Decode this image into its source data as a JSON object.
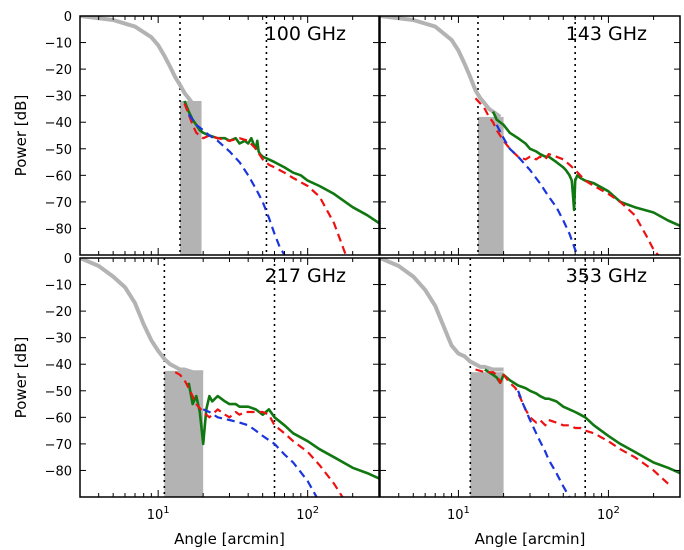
{
  "chart_data": {
    "type": "line",
    "xlabel": "Angle [arcmin]",
    "ylabel": "Power [dB]",
    "xscale": "log",
    "xlim": [
      3,
      300
    ],
    "ylim": [
      -90,
      0
    ],
    "x_tick_labels": [
      "10^1",
      "10^2"
    ],
    "y_tick_labels_top": [
      "0",
      "−10",
      "−20",
      "−30",
      "−40",
      "−50",
      "−60",
      "−70",
      "−80"
    ],
    "y_tick_labels_bottom": [
      "0",
      "−10",
      "−20",
      "−30",
      "−40",
      "−50",
      "−60",
      "−70",
      "−80"
    ],
    "grid": false,
    "colors": {
      "gray": "#b3b3b3",
      "green": "#117711",
      "red": "#ee1111",
      "blue": "#1a35dd"
    },
    "panels": [
      {
        "label": "100 GHz",
        "vlines": [
          14,
          53
        ],
        "shade": {
          "x0": 14,
          "x1": 19.5,
          "y_top": -32
        },
        "series": [
          {
            "style": "gray-solid",
            "x": [
              3,
              5,
              7,
              9,
              10,
              11,
              12,
              13,
              14,
              15,
              16,
              17,
              18
            ],
            "y": [
              0,
              -1.5,
              -4,
              -8,
              -11,
              -15,
              -19,
              -23,
              -26,
              -29,
              -31,
              -33,
              -35
            ]
          },
          {
            "style": "green-solid",
            "x": [
              15,
              16,
              17,
              18,
              19,
              20,
              22,
              25,
              28,
              30,
              33,
              35,
              38,
              40,
              42,
              44,
              45,
              46,
              47,
              48,
              50,
              55,
              60,
              70,
              80,
              90,
              100,
              120,
              150,
              200,
              250,
              300
            ],
            "y": [
              -32,
              -36,
              -39,
              -41,
              -43,
              -44,
              -45,
              -46,
              -46,
              -47,
              -46,
              -48,
              -47,
              -48,
              -46,
              -49,
              -50,
              -47,
              -51,
              -52,
              -53,
              -54,
              -55,
              -57,
              -59,
              -60,
              -62,
              -64,
              -67,
              -72,
              -75,
              -78
            ]
          },
          {
            "style": "red-dashed",
            "x": [
              15,
              16,
              17,
              18,
              20,
              22,
              25,
              30,
              35,
              40,
              45,
              50,
              55,
              60,
              70,
              80,
              100,
              120,
              150,
              180
            ],
            "y": [
              -33,
              -37,
              -41,
              -44,
              -46,
              -45,
              -46,
              -47,
              -46,
              -47,
              -50,
              -54,
              -56,
              -57,
              -59,
              -61,
              -64,
              -68,
              -78,
              -90
            ]
          },
          {
            "style": "blue-dashed",
            "x": [
              16,
              18,
              20,
              22,
              25,
              30,
              35,
              40,
              45,
              50,
              55,
              60,
              65,
              70
            ],
            "y": [
              -37,
              -41,
              -43,
              -45,
              -47,
              -51,
              -55,
              -60,
              -65,
              -70,
              -76,
              -82,
              -87,
              -90
            ]
          }
        ]
      },
      {
        "label": "143 GHz",
        "vlines": [
          13.5,
          60
        ],
        "shade": {
          "x0": 13.5,
          "x1": 20,
          "y_top": -38
        },
        "series": [
          {
            "style": "gray-solid",
            "x": [
              3,
              5,
              7,
              9,
              10,
              11,
              12,
              13,
              14,
              15,
              16,
              17,
              18,
              19
            ],
            "y": [
              0,
              -1.5,
              -4,
              -9,
              -13,
              -18,
              -23,
              -28,
              -31,
              -33,
              -35,
              -36,
              -37,
              -38
            ]
          },
          {
            "style": "green-solid",
            "x": [
              17,
              18,
              20,
              22,
              25,
              28,
              30,
              33,
              35,
              38,
              40,
              45,
              50,
              52,
              55,
              57,
              58,
              59,
              60,
              62,
              65,
              70,
              80,
              100,
              120,
              150,
              200,
              250,
              300
            ],
            "y": [
              -36,
              -39,
              -41,
              -44,
              -46,
              -48,
              -50,
              -51,
              -52,
              -53,
              -53,
              -55,
              -57,
              -58,
              -60,
              -62,
              -67,
              -73,
              -62,
              -60,
              -61,
              -62,
              -63,
              -66,
              -70,
              -72,
              -74,
              -77,
              -79
            ]
          },
          {
            "style": "red-dashed",
            "x": [
              13,
              14,
              15,
              16,
              17,
              18,
              20,
              22,
              25,
              28,
              30,
              33,
              35,
              38,
              40,
              45,
              50,
              55,
              60,
              70,
              80,
              100,
              120,
              150,
              180,
              200,
              230
            ],
            "y": [
              -31,
              -33,
              -35,
              -38,
              -40,
              -43,
              -47,
              -50,
              -53,
              -54,
              -53,
              -54,
              -53,
              -54,
              -52,
              -53,
              -54,
              -56,
              -58,
              -62,
              -64,
              -67,
              -70,
              -75,
              -83,
              -88,
              -92
            ]
          },
          {
            "style": "blue-dashed",
            "x": [
              18,
              20,
              22,
              25,
              30,
              35,
              40,
              45,
              50,
              55,
              60,
              65
            ],
            "y": [
              -41,
              -46,
              -50,
              -53,
              -58,
              -63,
              -68,
              -72,
              -77,
              -82,
              -88,
              -92
            ]
          }
        ]
      },
      {
        "label": "217 GHz",
        "vlines": [
          11,
          60
        ],
        "shade": {
          "x0": 11,
          "x1": 20,
          "y_top": -42.5
        },
        "series": [
          {
            "style": "gray-solid",
            "x": [
              3,
              4,
              5,
              6,
              7,
              8,
              9,
              10,
              11,
              12,
              13,
              14,
              15,
              17,
              20
            ],
            "y": [
              0,
              -3,
              -7,
              -11,
              -17,
              -25,
              -31,
              -35,
              -38,
              -40,
              -41,
              -42,
              -42,
              -43,
              -43
            ]
          },
          {
            "style": "green-solid",
            "x": [
              16,
              17,
              18,
              19,
              20,
              21,
              22,
              23,
              25,
              28,
              30,
              33,
              35,
              38,
              40,
              45,
              50,
              55,
              60,
              70,
              80,
              100,
              120,
              150,
              200,
              250,
              300
            ],
            "y": [
              -47,
              -55,
              -52,
              -58,
              -70,
              -57,
              -52,
              -54,
              -52,
              -54,
              -55,
              -55,
              -56,
              -56,
              -56,
              -57,
              -59,
              -57,
              -60,
              -63,
              -66,
              -69,
              -72,
              -75,
              -79,
              -81,
              -83
            ]
          },
          {
            "style": "red-dashed",
            "x": [
              13,
              14,
              15,
              16,
              17,
              18,
              20,
              22,
              25,
              28,
              30,
              33,
              35,
              38,
              40,
              45,
              50,
              55,
              60,
              70,
              80,
              100,
              120,
              150,
              180
            ],
            "y": [
              -43,
              -44,
              -46,
              -49,
              -52,
              -55,
              -58,
              -60,
              -57,
              -59,
              -60,
              -58,
              -59,
              -58,
              -58,
              -58,
              -58,
              -59,
              -63,
              -66,
              -69,
              -73,
              -78,
              -85,
              -92
            ]
          },
          {
            "style": "blue-dashed",
            "x": [
              20,
              22,
              25,
              30,
              35,
              40,
              45,
              50,
              60,
              70,
              80,
              100,
              120
            ],
            "y": [
              -57,
              -58,
              -60,
              -61,
              -62,
              -63,
              -65,
              -67,
              -70,
              -74,
              -77,
              -84,
              -92
            ]
          }
        ]
      },
      {
        "label": "353 GHz",
        "vlines": [
          12,
          70
        ],
        "shade": {
          "x0": 12,
          "x1": 20,
          "y_top": -43
        },
        "series": [
          {
            "style": "gray-solid",
            "x": [
              3,
              4,
              5,
              6,
              7,
              8,
              9,
              10,
              11,
              12,
              13,
              14,
              15,
              17,
              20
            ],
            "y": [
              0,
              -3,
              -7,
              -12,
              -18,
              -26,
              -33,
              -36,
              -37,
              -39,
              -40,
              -41,
              -41,
              -42,
              -42
            ]
          },
          {
            "style": "green-solid",
            "x": [
              15,
              16,
              17,
              18,
              19,
              20,
              22,
              25,
              28,
              30,
              33,
              35,
              38,
              40,
              45,
              50,
              55,
              60,
              65,
              70,
              80,
              100,
              120,
              150,
              200,
              250,
              300
            ],
            "y": [
              -42,
              -43,
              -44,
              -45,
              -47,
              -44,
              -46,
              -48,
              -49,
              -50,
              -51,
              -52,
              -53,
              -53,
              -54,
              -56,
              -57,
              -58,
              -59,
              -60,
              -63,
              -67,
              -70,
              -73,
              -77,
              -79,
              -81
            ]
          },
          {
            "style": "red-dashed",
            "x": [
              13,
              15,
              17,
              18,
              19,
              20,
              22,
              24,
              26,
              28,
              30,
              33,
              35,
              38,
              40,
              45,
              50,
              55,
              60,
              65,
              70,
              80,
              100,
              120,
              150,
              200,
              250
            ],
            "y": [
              -42,
              -43,
              -43,
              -44,
              -47,
              -44,
              -47,
              -49,
              -53,
              -57,
              -60,
              -62,
              -61,
              -63,
              -61,
              -62,
              -63,
              -63,
              -64,
              -64,
              -65,
              -66,
              -69,
              -72,
              -75,
              -80,
              -85
            ]
          },
          {
            "style": "blue-dashed",
            "x": [
              25,
              27,
              30,
              33,
              35,
              38,
              40,
              45,
              50,
              55,
              60
            ],
            "y": [
              -50,
              -55,
              -61,
              -66,
              -69,
              -73,
              -76,
              -81,
              -86,
              -90,
              -94
            ]
          }
        ]
      }
    ]
  }
}
